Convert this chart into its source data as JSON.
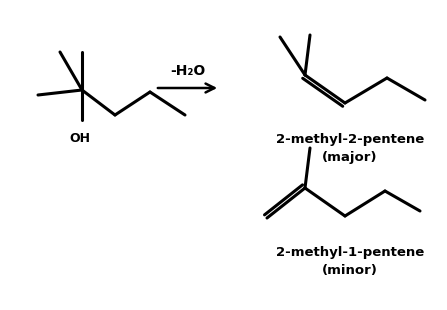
{
  "background_color": "#ffffff",
  "line_color": "#000000",
  "line_width": 2.2,
  "text_color": "#000000",
  "minus_h2o": "-H₂O",
  "minus_h2o_fontsize": 10,
  "label_major": "2-methyl-2-pentene\n(major)",
  "label_minor": "2-methyl-1-pentene\n(minor)",
  "label_fontsize": 9.5,
  "oh_label": "OH",
  "oh_fontsize": 9
}
